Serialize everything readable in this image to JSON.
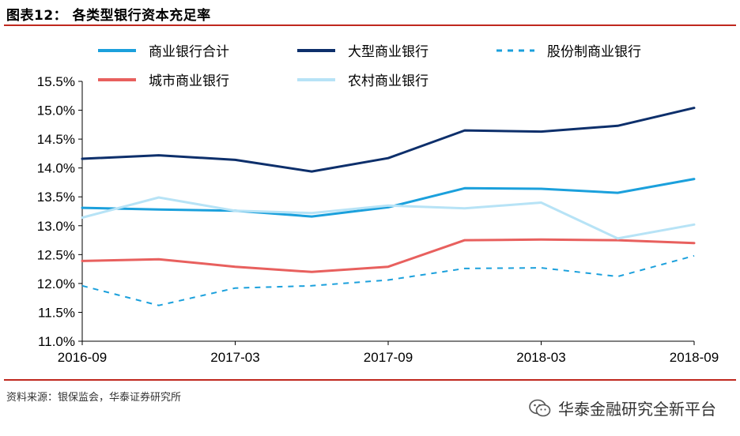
{
  "header": {
    "title": "图表12：  各类型银行资本充足率"
  },
  "footer": {
    "source": "资料来源：银保监会，华泰证券研究所",
    "watermark": "华泰金融研究全新平台",
    "watermark_icon": "wechat-icon"
  },
  "colors": {
    "accent_rule": "#c0281e",
    "series": [
      "#1ba0dc",
      "#0d2f6b",
      "#1ba0dc",
      "#e8605e",
      "#b7e3f6"
    ]
  },
  "chart_data": {
    "type": "line",
    "title": "各类型银行资本充足率",
    "x": [
      "2016-09",
      "2016-12",
      "2017-03",
      "2017-06",
      "2017-09",
      "2017-12",
      "2018-03",
      "2018-06",
      "2018-09"
    ],
    "x_tick_labels": [
      "2016-09",
      "2017-03",
      "2017-09",
      "2018-03",
      "2018-09"
    ],
    "y_tick_labels": [
      "11.0%",
      "11.5%",
      "12.0%",
      "12.5%",
      "13.0%",
      "13.5%",
      "14.0%",
      "14.5%",
      "15.0%",
      "15.5%"
    ],
    "ylim": [
      11.0,
      15.5
    ],
    "y_unit": "%",
    "grid": false,
    "legend_position": "top",
    "series": [
      {
        "name": "商业银行合计",
        "style": "solid",
        "values": [
          13.31,
          13.28,
          13.26,
          13.16,
          13.32,
          13.65,
          13.64,
          13.57,
          13.81
        ]
      },
      {
        "name": "大型商业银行",
        "style": "solid",
        "values": [
          14.16,
          14.22,
          14.14,
          13.94,
          14.17,
          14.65,
          14.63,
          14.73,
          15.04
        ]
      },
      {
        "name": "股份制商业银行",
        "style": "dashed",
        "values": [
          11.96,
          11.62,
          11.92,
          11.96,
          12.06,
          12.26,
          12.27,
          12.12,
          12.48
        ]
      },
      {
        "name": "城市商业银行",
        "style": "solid",
        "values": [
          12.39,
          12.42,
          12.29,
          12.2,
          12.29,
          12.75,
          12.76,
          12.75,
          12.7
        ]
      },
      {
        "name": "农村商业银行",
        "style": "solid",
        "values": [
          13.14,
          13.49,
          13.26,
          13.22,
          13.35,
          13.3,
          13.4,
          12.78,
          13.02
        ]
      }
    ]
  }
}
